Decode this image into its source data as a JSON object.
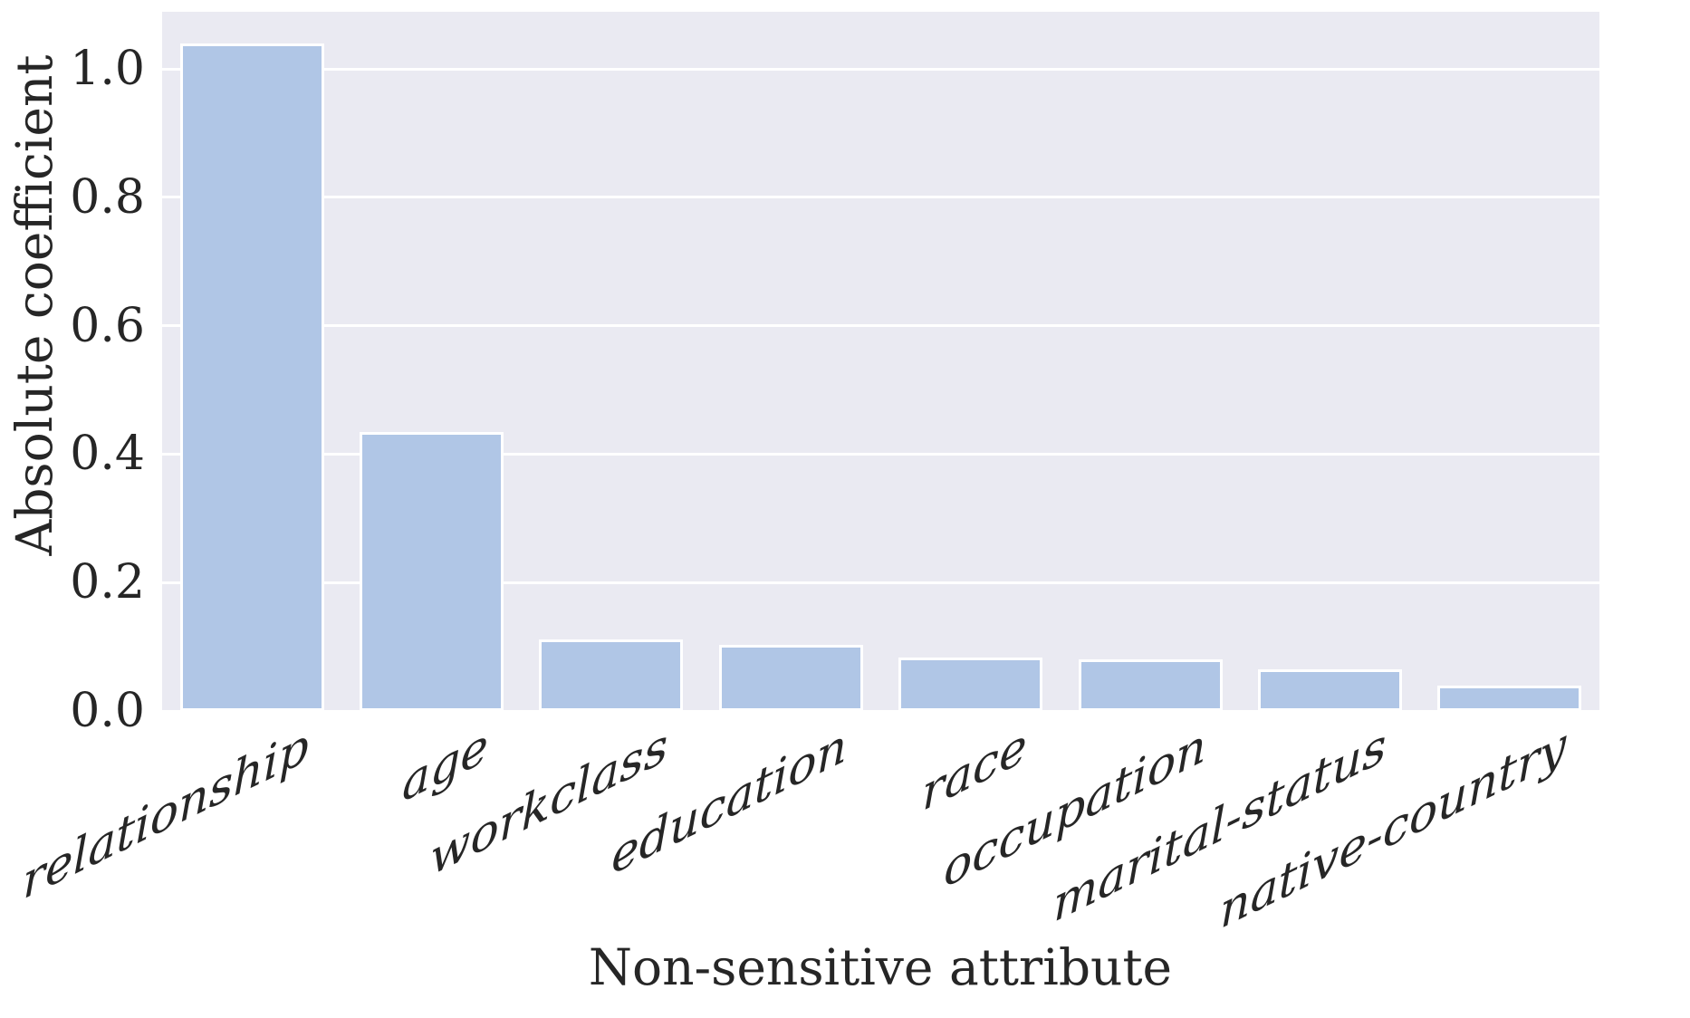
{
  "chart_data": {
    "type": "bar",
    "title": "",
    "xlabel": "Non-sensitive attribute",
    "ylabel": "Absolute coefficient",
    "categories": [
      "relationship",
      "age",
      "workclass",
      "education",
      "race",
      "occupation",
      "marital-status",
      "native-country"
    ],
    "values": [
      1.039,
      0.434,
      0.111,
      0.103,
      0.083,
      0.08,
      0.065,
      0.039
    ],
    "ytick_values": [
      0.0,
      0.2,
      0.4,
      0.6,
      0.8,
      1.0
    ],
    "ytick_labels": [
      "0.0",
      "0.2",
      "0.4",
      "0.6",
      "0.8",
      "1.0"
    ],
    "ylim": [
      0,
      1.089
    ],
    "grid": true,
    "legend_position": "none",
    "colors": {
      "plot_background": "#eaeaf2",
      "figure_background": "#ffffff",
      "bar_fill": "#b0c6e6",
      "bar_edge": "#ffffff",
      "gridline": "#ffffff",
      "text": "#262626"
    }
  }
}
